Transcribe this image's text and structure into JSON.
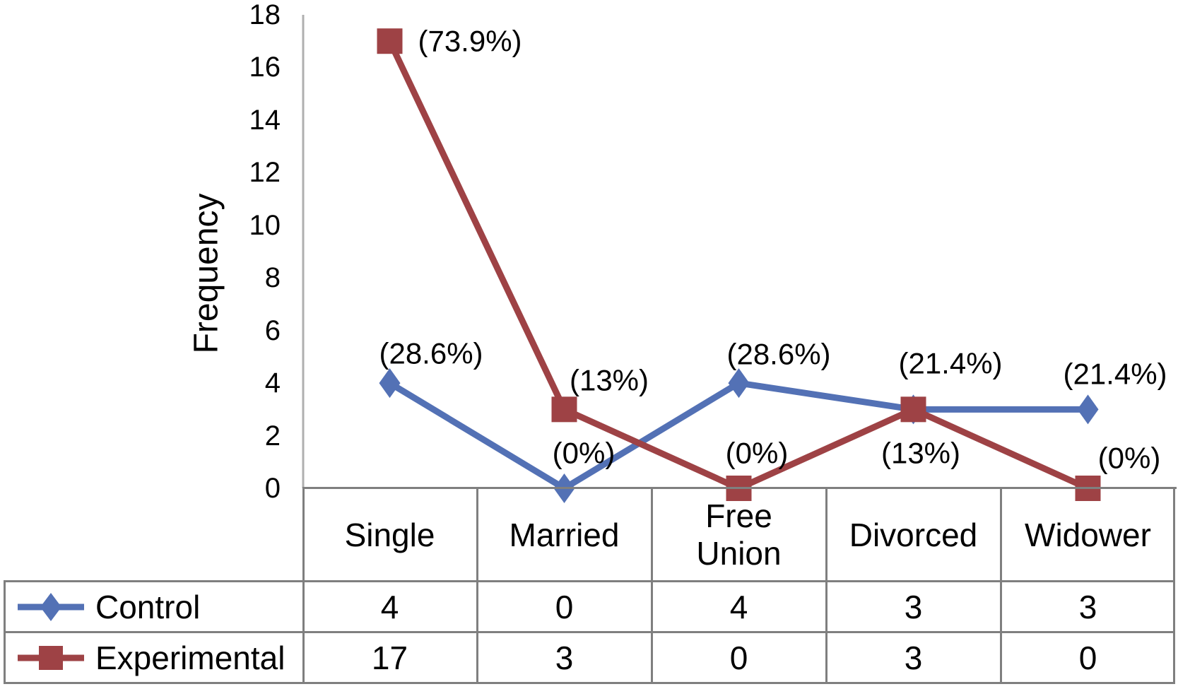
{
  "chart_data": {
    "type": "line",
    "title": "",
    "xlabel": "",
    "ylabel": "Frequency",
    "categories": [
      "Single",
      "Married",
      "Free Union",
      "Divorced",
      "Widower"
    ],
    "y_ticks": [
      0,
      2,
      4,
      6,
      8,
      10,
      12,
      14,
      16,
      18
    ],
    "ylim": [
      0,
      18
    ],
    "grid": false,
    "legend_position": "table-left",
    "series": [
      {
        "name": "Control",
        "marker": "diamond",
        "color": "#5371B5",
        "values": [
          4,
          0,
          4,
          3,
          3
        ],
        "point_labels": [
          "(28.6%)",
          "(0%)",
          "(28.6%)",
          "(21.4%)",
          "(21.4%)"
        ]
      },
      {
        "name": "Experimental",
        "marker": "square",
        "color": "#9E4245",
        "values": [
          17,
          3,
          0,
          3,
          0
        ],
        "point_labels": [
          "(73.9%)",
          "(13%)",
          "(0%)",
          "(13%)",
          "(0%)"
        ]
      }
    ]
  },
  "colors": {
    "control_blue": "#5371B5",
    "experimental_red": "#9E4245",
    "table_border": "#7F7F7F",
    "axis_line": "#AFAFAF",
    "text": "#000000",
    "background": "#FFFFFF"
  }
}
